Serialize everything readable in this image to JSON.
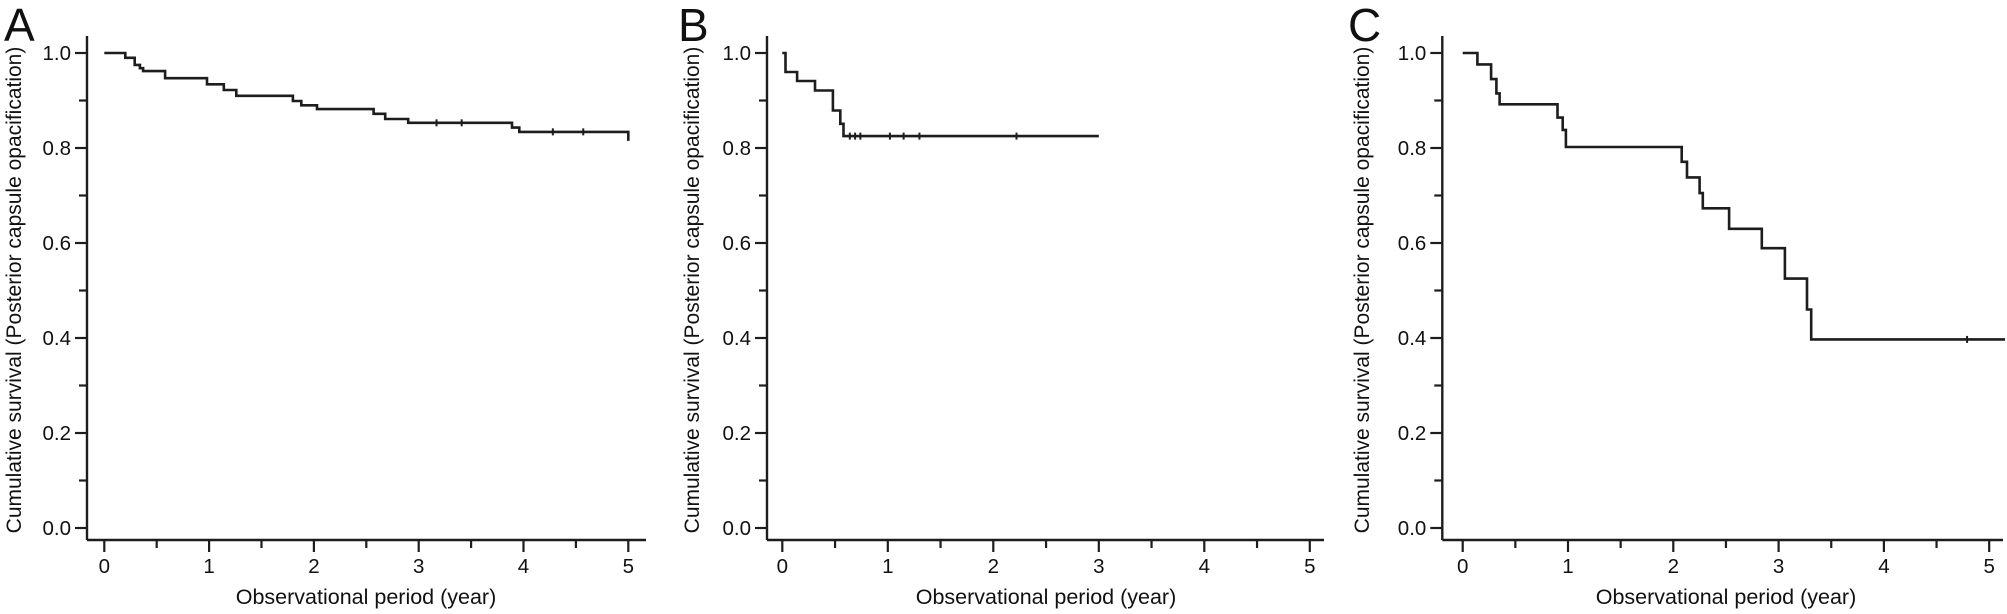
{
  "figure": {
    "line_color": "#1d1d1d",
    "text_color": "#111111",
    "background": "#ffffff"
  },
  "chart_data": [
    {
      "type": "line",
      "subtype": "kaplan-meier-step",
      "panel_label": "A",
      "xlabel": "Observational period (year)",
      "ylabel": "Cumulative survival (Posterior capsule opacification)",
      "xlim": [
        0,
        5
      ],
      "ylim": [
        0.0,
        1.0
      ],
      "x_ticks": [
        0,
        1,
        2,
        3,
        4,
        5
      ],
      "y_ticks": [
        0.0,
        0.2,
        0.4,
        0.6,
        0.8,
        1.0
      ],
      "x_minor_step": 0.5,
      "y_minor_step": 0.1,
      "grid": false,
      "legend": null,
      "steps": [
        [
          0,
          1.0
        ],
        [
          0.2,
          0.99
        ],
        [
          0.29,
          0.975
        ],
        [
          0.34,
          0.968
        ],
        [
          0.37,
          0.962
        ],
        [
          0.58,
          0.947
        ],
        [
          0.98,
          0.934
        ],
        [
          1.14,
          0.922
        ],
        [
          1.26,
          0.91
        ],
        [
          1.8,
          0.899
        ],
        [
          1.88,
          0.89
        ],
        [
          2.03,
          0.882
        ],
        [
          2.57,
          0.872
        ],
        [
          2.68,
          0.861
        ],
        [
          2.9,
          0.853
        ],
        [
          3.89,
          0.843
        ],
        [
          3.96,
          0.834
        ]
      ],
      "end_time": 5.0,
      "end_drop_to": 0.815,
      "censor_times": [
        3.17,
        3.41,
        4.28,
        4.57
      ]
    },
    {
      "type": "line",
      "subtype": "kaplan-meier-step",
      "panel_label": "B",
      "xlabel": "Observational period (year)",
      "ylabel": "Cumulative survival (Posterior capsule opacification)",
      "xlim": [
        0,
        5
      ],
      "ylim": [
        0.0,
        1.0
      ],
      "x_ticks": [
        0,
        1,
        2,
        3,
        4,
        5
      ],
      "y_ticks": [
        0.0,
        0.2,
        0.4,
        0.6,
        0.8,
        1.0
      ],
      "x_minor_step": 0.5,
      "y_minor_step": 0.1,
      "grid": false,
      "legend": null,
      "steps": [
        [
          0,
          1.0
        ],
        [
          0.03,
          0.96
        ],
        [
          0.14,
          0.941
        ],
        [
          0.31,
          0.921
        ],
        [
          0.48,
          0.879
        ],
        [
          0.55,
          0.851
        ],
        [
          0.58,
          0.825
        ]
      ],
      "end_time": 3.0,
      "end_drop_to": null,
      "censor_times": [
        0.64,
        0.69,
        0.74,
        1.02,
        1.15,
        1.3,
        2.22
      ]
    },
    {
      "type": "line",
      "subtype": "kaplan-meier-step",
      "panel_label": "C",
      "xlabel": "Observational period (year)",
      "ylabel": "Cumulative survival (Posterior capsule opacification)",
      "xlim": [
        0,
        5
      ],
      "ylim": [
        0.0,
        1.0
      ],
      "x_ticks": [
        0,
        1,
        2,
        3,
        4,
        5
      ],
      "y_ticks": [
        0.0,
        0.2,
        0.4,
        0.6,
        0.8,
        1.0
      ],
      "x_minor_step": 0.5,
      "y_minor_step": 0.1,
      "grid": false,
      "legend": null,
      "steps": [
        [
          0,
          1.0
        ],
        [
          0.14,
          0.976
        ],
        [
          0.27,
          0.945
        ],
        [
          0.32,
          0.915
        ],
        [
          0.35,
          0.892
        ],
        [
          0.9,
          0.864
        ],
        [
          0.95,
          0.838
        ],
        [
          0.98,
          0.802
        ],
        [
          2.08,
          0.771
        ],
        [
          2.13,
          0.738
        ],
        [
          2.25,
          0.705
        ],
        [
          2.28,
          0.673
        ],
        [
          2.53,
          0.63
        ],
        [
          2.84,
          0.589
        ],
        [
          3.06,
          0.525
        ],
        [
          3.27,
          0.46
        ],
        [
          3.31,
          0.397
        ]
      ],
      "end_time": 5.15,
      "end_drop_to": null,
      "censor_times": [
        4.79
      ]
    }
  ]
}
